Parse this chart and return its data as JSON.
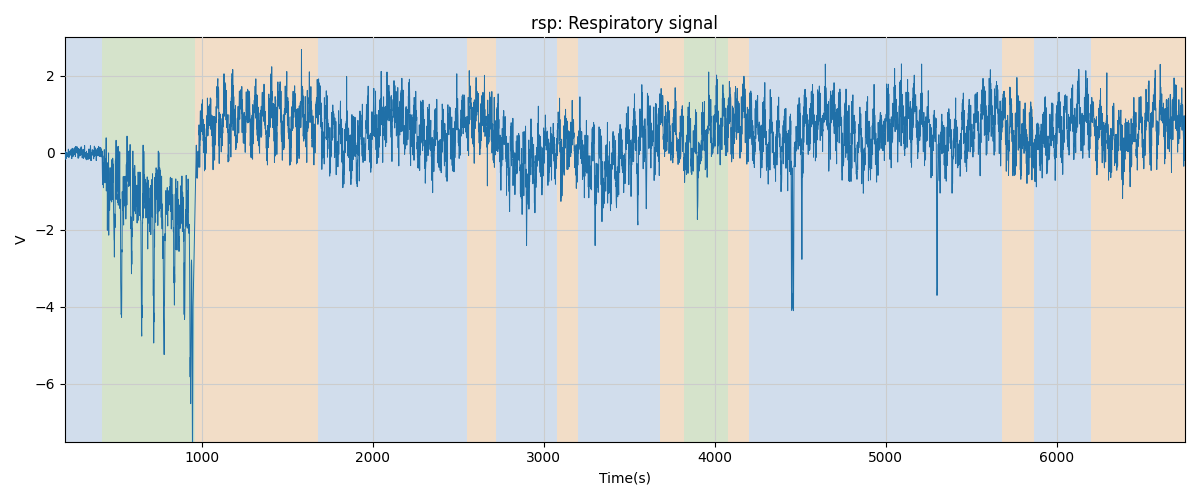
{
  "title": "rsp: Respiratory signal",
  "xlabel": "Time(s)",
  "ylabel": "V",
  "xlim": [
    200,
    6750
  ],
  "ylim": [
    -7.5,
    3.0
  ],
  "yticks": [
    2,
    0,
    -2,
    -4,
    -6
  ],
  "signal_color": "#2070a8",
  "signal_linewidth": 0.7,
  "background_bands": [
    {
      "xmin": 200,
      "xmax": 420,
      "color": "#adc6e8",
      "alpha": 0.45
    },
    {
      "xmin": 420,
      "xmax": 960,
      "color": "#b5d5a0",
      "alpha": 0.45
    },
    {
      "xmin": 960,
      "xmax": 1680,
      "color": "#f5c897",
      "alpha": 0.45
    },
    {
      "xmin": 1680,
      "xmax": 2550,
      "color": "#adc6e8",
      "alpha": 0.45
    },
    {
      "xmin": 2550,
      "xmax": 2720,
      "color": "#f5c897",
      "alpha": 0.45
    },
    {
      "xmin": 2720,
      "xmax": 3080,
      "color": "#adc6e8",
      "alpha": 0.45
    },
    {
      "xmin": 3080,
      "xmax": 3200,
      "color": "#f5c897",
      "alpha": 0.45
    },
    {
      "xmin": 3200,
      "xmax": 3680,
      "color": "#adc6e8",
      "alpha": 0.45
    },
    {
      "xmin": 3680,
      "xmax": 3820,
      "color": "#f5c897",
      "alpha": 0.45
    },
    {
      "xmin": 3820,
      "xmax": 4080,
      "color": "#b5d5a0",
      "alpha": 0.45
    },
    {
      "xmin": 4080,
      "xmax": 4200,
      "color": "#f5c897",
      "alpha": 0.45
    },
    {
      "xmin": 4200,
      "xmax": 4530,
      "color": "#adc6e8",
      "alpha": 0.45
    },
    {
      "xmin": 4530,
      "xmax": 5680,
      "color": "#adc6e8",
      "alpha": 0.45
    },
    {
      "xmin": 5680,
      "xmax": 5870,
      "color": "#f5c897",
      "alpha": 0.45
    },
    {
      "xmin": 5870,
      "xmax": 6200,
      "color": "#adc6e8",
      "alpha": 0.45
    },
    {
      "xmin": 6200,
      "xmax": 6750,
      "color": "#f5c897",
      "alpha": 0.45
    }
  ],
  "seed": 7,
  "grid_color": "#cccccc",
  "grid_linewidth": 0.8,
  "bg_color": "#f0f0f0"
}
